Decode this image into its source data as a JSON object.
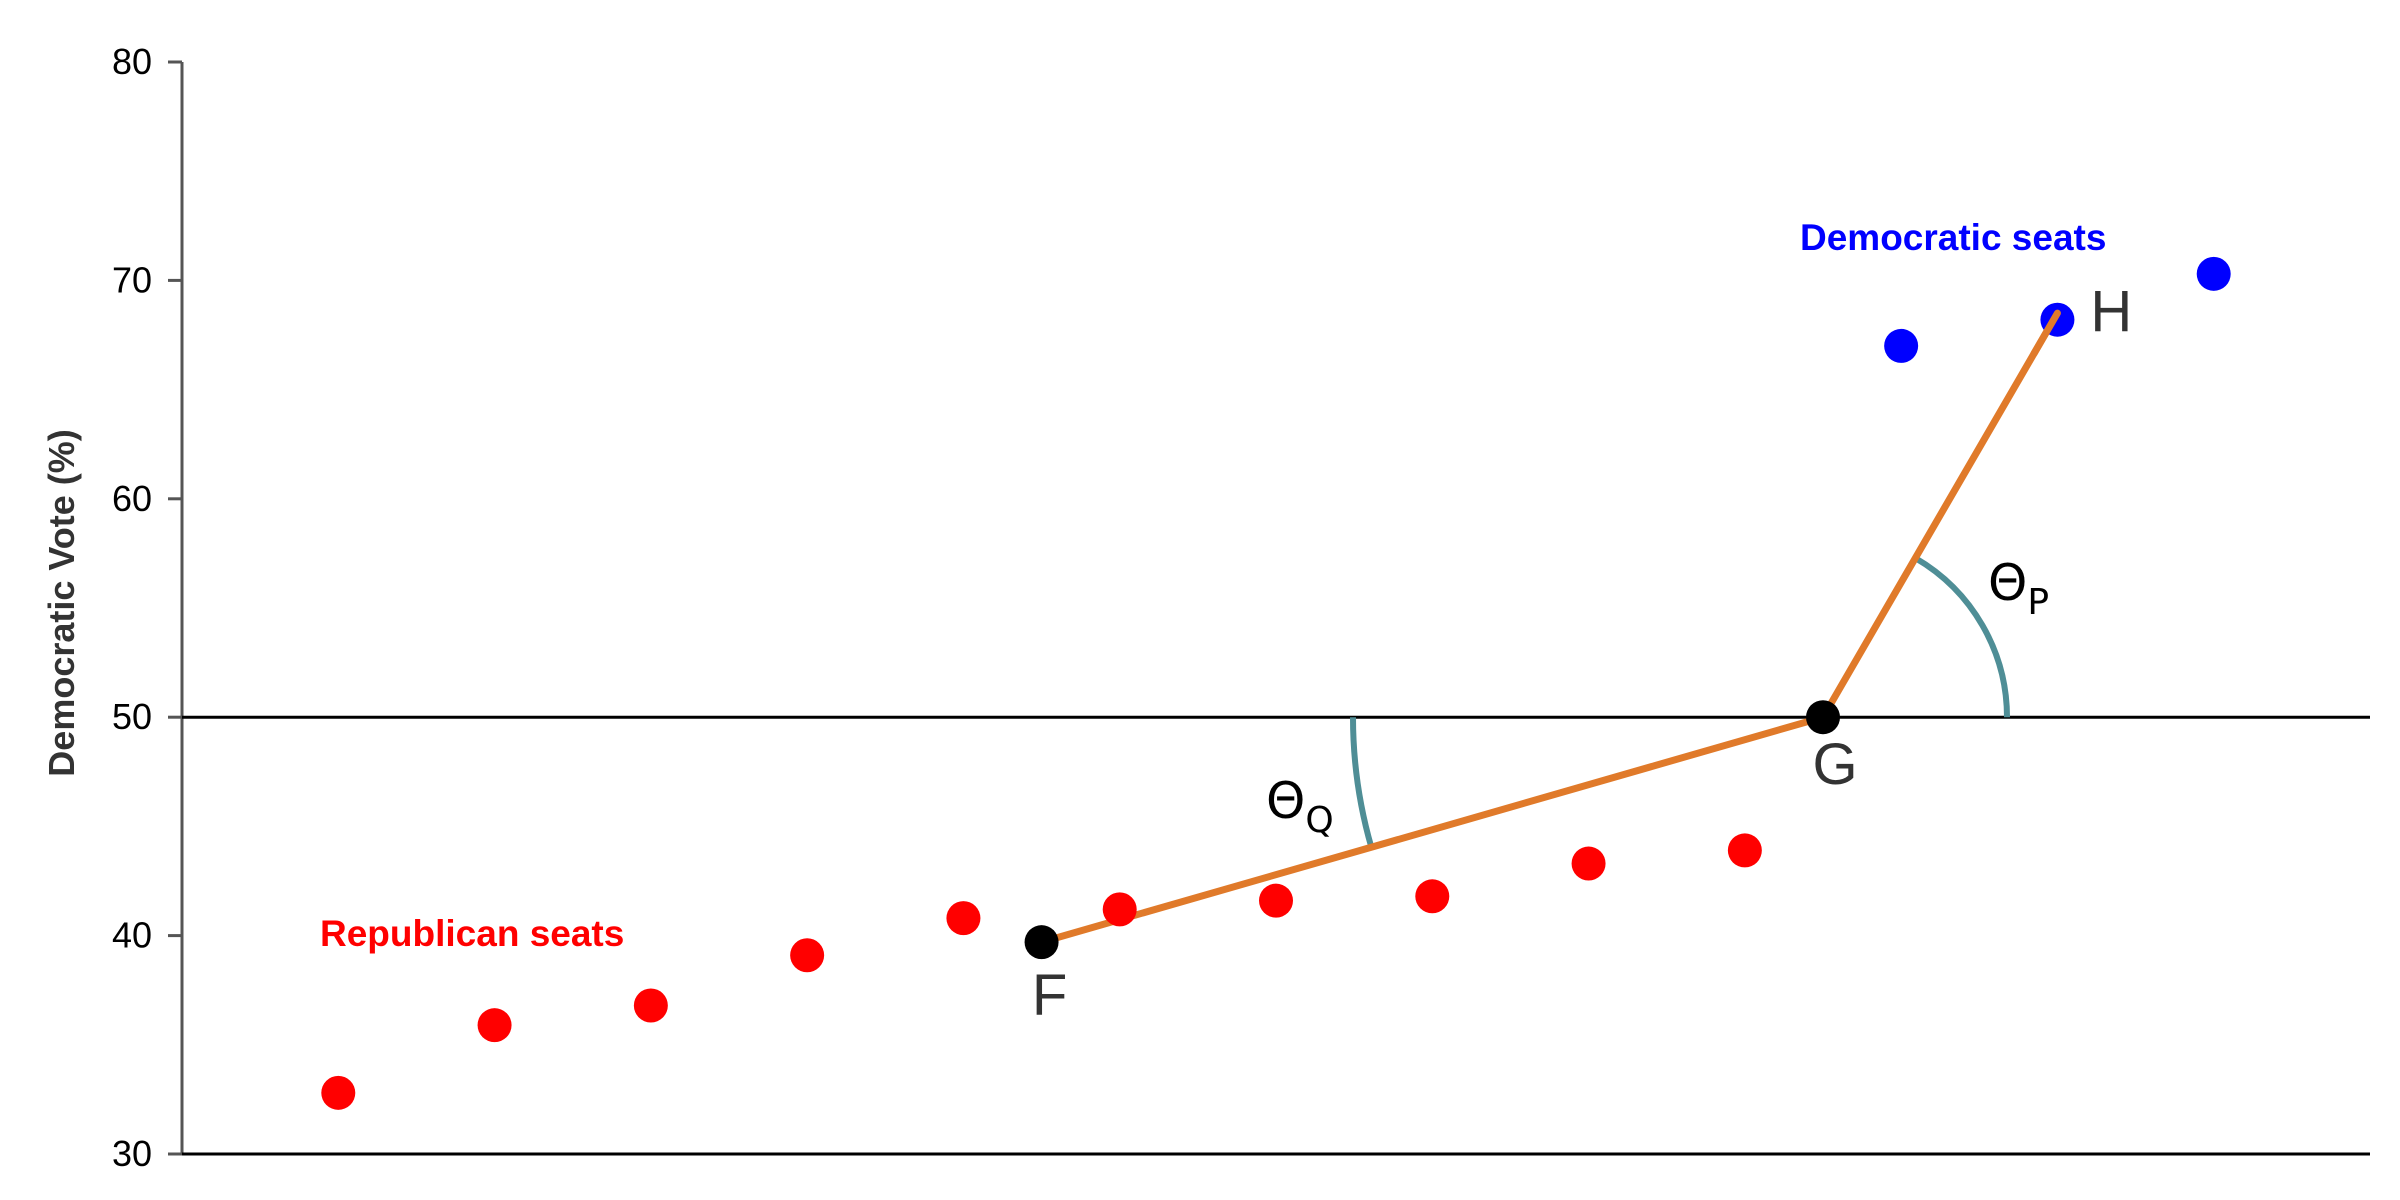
{
  "chart_data": {
    "type": "scatter",
    "ylabel": "Democratic Vote (%)",
    "ylim": [
      30,
      80
    ],
    "xlim": [
      0,
      14
    ],
    "yticks": [
      30,
      40,
      50,
      60,
      70,
      80
    ],
    "reference_line": 50,
    "grid": false,
    "colors": {
      "republican": "#ff0000",
      "democratic": "#0000ff",
      "key_point": "#000000",
      "segment": "#e07a2a",
      "angle_arc": "#4f8e96",
      "axis": "#555555"
    },
    "series": [
      {
        "name": "Republican seats",
        "color": "#ff0000",
        "x": [
          1,
          2,
          3,
          4,
          5,
          6,
          7,
          8,
          9,
          10
        ],
        "y": [
          32.8,
          35.9,
          36.8,
          39.1,
          40.8,
          41.2,
          41.6,
          41.8,
          43.3,
          43.9
        ]
      },
      {
        "name": "Democratic seats",
        "color": "#0000ff",
        "x": [
          11,
          12,
          13
        ],
        "y": [
          67.0,
          68.2,
          70.3
        ]
      }
    ],
    "key_points": [
      {
        "label": "F",
        "x": 5.5,
        "y": 39.7
      },
      {
        "label": "G",
        "x": 10.5,
        "y": 50.0
      },
      {
        "label": "H",
        "x": 12.0,
        "y": 68.5
      }
    ],
    "angles": [
      {
        "symbol": "Θ",
        "subscript": "Q",
        "vertex": "F",
        "from": "horizontal",
        "to": "G",
        "side": "left"
      },
      {
        "symbol": "Θ",
        "subscript": "P",
        "vertex": "G",
        "from": "horizontal",
        "to": "H",
        "side": "right"
      }
    ]
  }
}
